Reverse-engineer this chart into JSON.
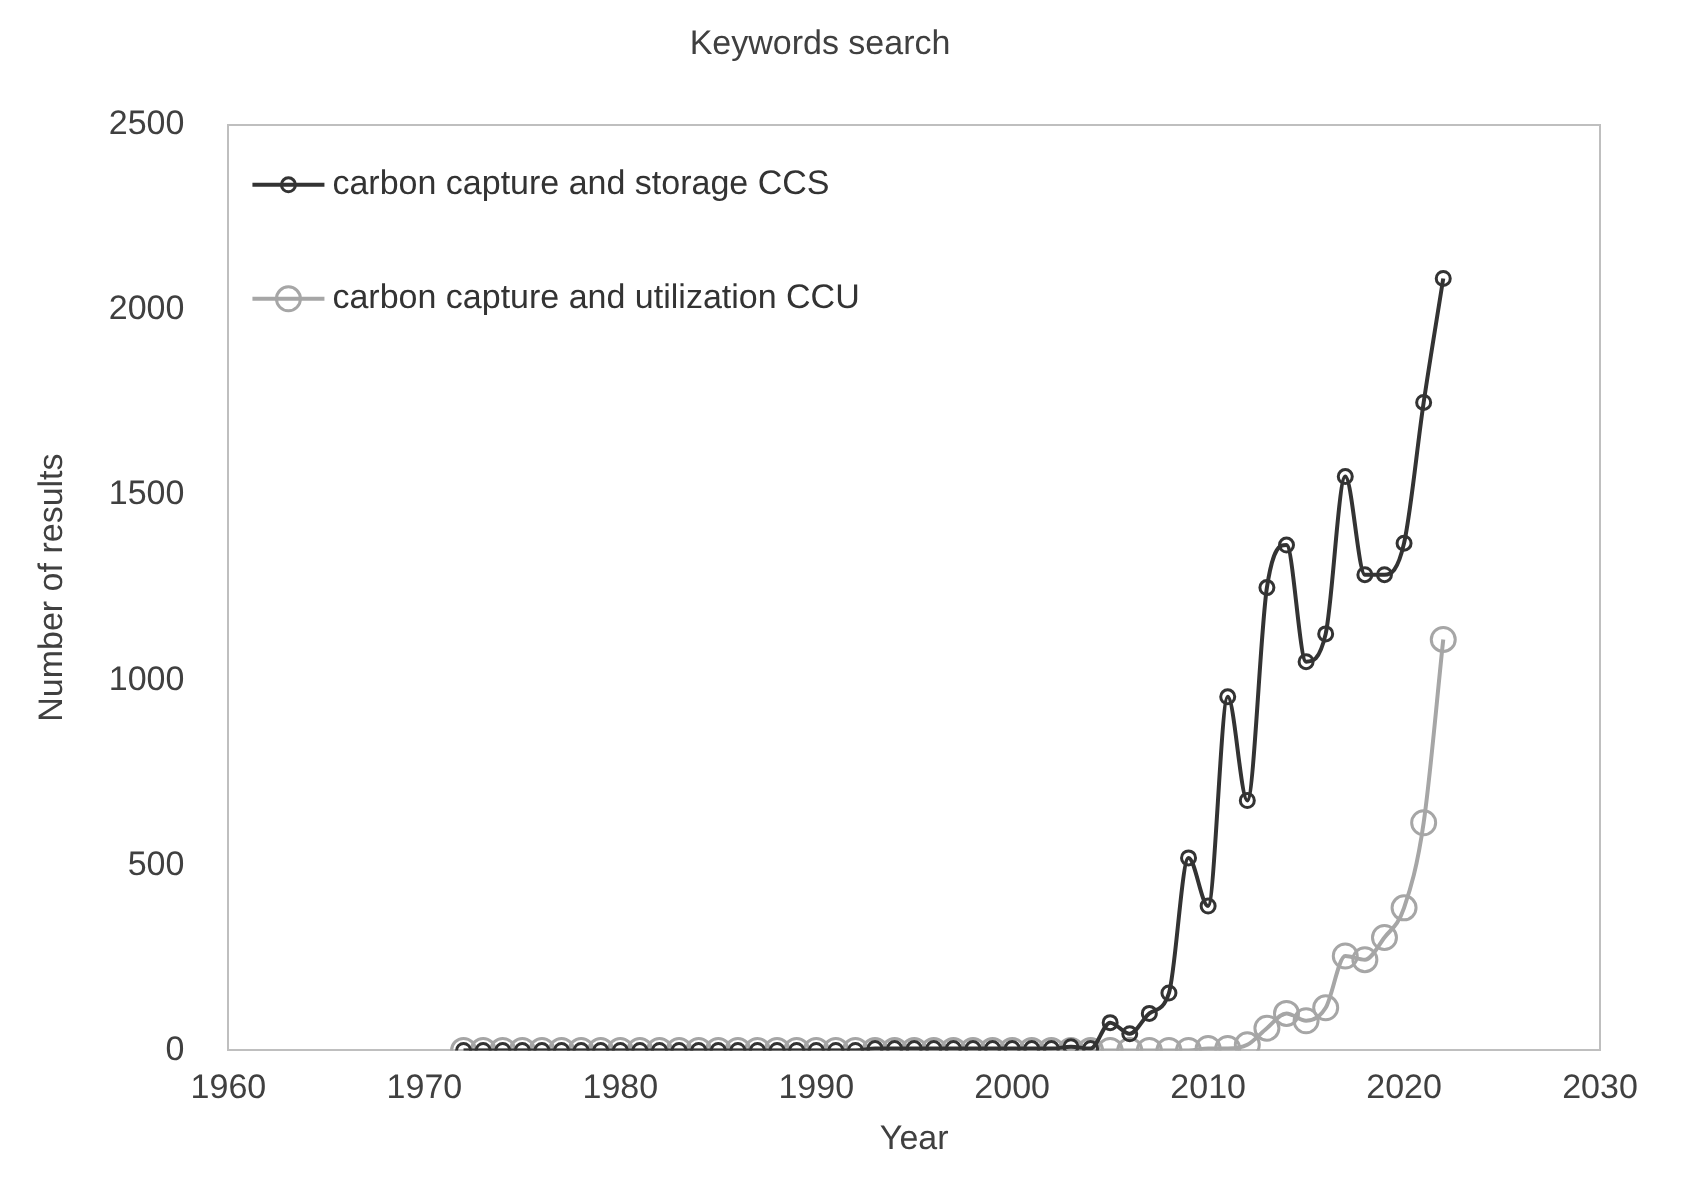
{
  "chart_data": {
    "type": "line",
    "title": "Keywords search",
    "xlabel": "Year",
    "ylabel": "Number of results",
    "x": [
      1972,
      1973,
      1974,
      1975,
      1976,
      1977,
      1978,
      1979,
      1980,
      1981,
      1982,
      1983,
      1984,
      1985,
      1986,
      1987,
      1988,
      1989,
      1990,
      1991,
      1992,
      1993,
      1994,
      1995,
      1996,
      1997,
      1998,
      1999,
      2000,
      2001,
      2002,
      2003,
      2004,
      2005,
      2006,
      2007,
      2008,
      2009,
      2010,
      2011,
      2012,
      2013,
      2014,
      2015,
      2016,
      2017,
      2018,
      2019,
      2020,
      2021,
      2022
    ],
    "series": [
      {
        "name": "carbon capture and storage CCS",
        "color": "#333333",
        "marker": "circle",
        "values": [
          0,
          0,
          0,
          0,
          0,
          0,
          0,
          0,
          0,
          0,
          0,
          0,
          0,
          0,
          0,
          0,
          0,
          0,
          0,
          0,
          0,
          5,
          5,
          5,
          5,
          5,
          5,
          5,
          5,
          5,
          5,
          10,
          5,
          75,
          45,
          100,
          155,
          520,
          390,
          955,
          675,
          1250,
          1365,
          1050,
          1125,
          1550,
          1285,
          1285,
          1370,
          1750,
          2085
        ]
      },
      {
        "name": "carbon capture and utilization CCU",
        "color": "#a6a6a6",
        "marker": "circle",
        "values": [
          0,
          0,
          0,
          0,
          0,
          0,
          0,
          0,
          0,
          0,
          0,
          0,
          0,
          0,
          0,
          0,
          0,
          0,
          0,
          0,
          0,
          0,
          0,
          0,
          0,
          0,
          0,
          0,
          0,
          0,
          0,
          0,
          0,
          0,
          0,
          0,
          0,
          0,
          5,
          5,
          15,
          60,
          100,
          80,
          115,
          255,
          245,
          305,
          385,
          615,
          1110
        ]
      }
    ],
    "xlim": [
      1960,
      2030
    ],
    "xticks": [
      1960,
      1970,
      1980,
      1990,
      2000,
      2010,
      2020,
      2030
    ],
    "ylim": [
      0,
      2500
    ],
    "yticks": [
      0,
      500,
      1000,
      1500,
      2000,
      2500
    ],
    "grid": false,
    "legend": "top left"
  }
}
